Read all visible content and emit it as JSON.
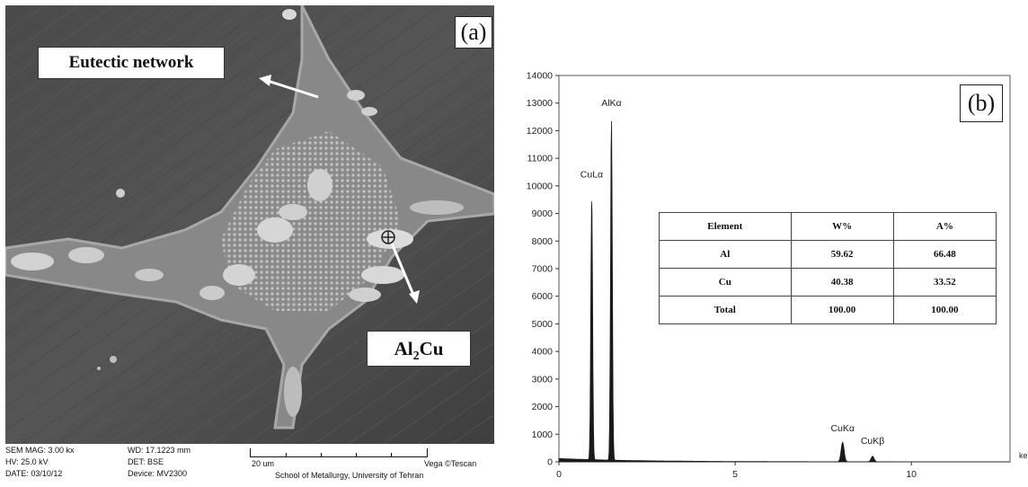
{
  "panel_a": {
    "label": "(a)",
    "callouts": {
      "eutectic": "Eutectic network",
      "al2cu_main": "Al",
      "al2cu_sub": "2",
      "al2cu_tail": "Cu"
    },
    "info": {
      "sem_mag": "SEM MAG: 3.00 kx",
      "hv": "HV:  25.0 kV",
      "date": "DATE: 03/10/12",
      "wd": "WD: 17.1223 mm",
      "det": "DET: BSE",
      "device": "Device: MV2300",
      "scale": "20 um",
      "brand": "Vega ©Tescan",
      "school": "School of Metallurgy, University of Tehran"
    }
  },
  "panel_b": {
    "label": "(b)",
    "table": {
      "headers": [
        "Element",
        "W%",
        "A%"
      ],
      "rows": [
        [
          "Al",
          "59.62",
          "66.48"
        ],
        [
          "Cu",
          "40.38",
          "33.52"
        ],
        [
          "Total",
          "100.00",
          "100.00"
        ]
      ]
    }
  },
  "chart_data": {
    "type": "line",
    "xlabel": "keV",
    "xlim": [
      0,
      12.8
    ],
    "ylim": [
      0,
      14000
    ],
    "x_ticks": [
      0,
      5,
      10
    ],
    "y_ticks": [
      0,
      1000,
      2000,
      3000,
      4000,
      5000,
      6000,
      7000,
      8000,
      9000,
      10000,
      11000,
      12000,
      13000,
      14000
    ],
    "peaks": [
      {
        "label": "CuLα",
        "x": 0.93,
        "y": 9600,
        "label_y": 10300
      },
      {
        "label": "AlKα",
        "x": 1.49,
        "y": 12400,
        "label_y": 12900
      },
      {
        "label": "CuKα",
        "x": 8.05,
        "y": 700,
        "label_y": 1100
      },
      {
        "label": "CuKβ",
        "x": 8.9,
        "y": 200,
        "label_y": 650
      }
    ]
  }
}
